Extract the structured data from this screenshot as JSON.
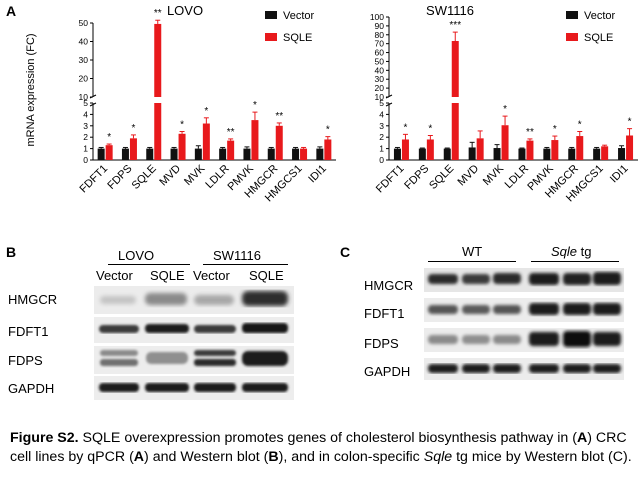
{
  "panelA": {
    "letter": "A",
    "ylabel": "mRNA expression (FC)",
    "categories": [
      "FDFT1",
      "FDPS",
      "SQLE",
      "MVD",
      "MVK",
      "LDLR",
      "PMVK",
      "HMGCR",
      "HMGCS1",
      "IDI1"
    ],
    "legend": [
      "Vector",
      "SQLE"
    ],
    "colors": {
      "vector": "#111111",
      "sqle": "#e8191c"
    }
  },
  "chart_data": [
    {
      "type": "bar",
      "title": "LOVO",
      "ylabel": "mRNA expression (FC)",
      "categories": [
        "FDFT1",
        "FDPS",
        "SQLE",
        "MVD",
        "MVK",
        "LDLR",
        "PMVK",
        "HMGCR",
        "HMGCS1",
        "IDI1"
      ],
      "series": [
        {
          "name": "Vector",
          "values": [
            1,
            1,
            1,
            1,
            1,
            1,
            1,
            1,
            1,
            1
          ],
          "errors": [
            0.1,
            0.1,
            0.1,
            0.1,
            0.25,
            0.1,
            0.15,
            0.1,
            0.1,
            0.15
          ]
        },
        {
          "name": "SQLE",
          "values": [
            1.3,
            1.9,
            49.5,
            2.3,
            3.2,
            1.7,
            3.5,
            3.0,
            1.0,
            1.8
          ],
          "errors": [
            0.1,
            0.3,
            2.0,
            0.2,
            0.5,
            0.15,
            0.7,
            0.25,
            0.1,
            0.25
          ]
        }
      ],
      "significance": [
        "*",
        "*",
        "**",
        "*",
        "*",
        "**",
        "*",
        "**",
        "",
        "*"
      ],
      "yticks": [
        0,
        1,
        2,
        3,
        4,
        5,
        10,
        20,
        30,
        40,
        50
      ],
      "broken_axis": {
        "lower": [
          0,
          5
        ],
        "upper": [
          10,
          50
        ]
      }
    },
    {
      "type": "bar",
      "title": "SW1116",
      "ylabel": "",
      "categories": [
        "FDFT1",
        "FDPS",
        "SQLE",
        "MVD",
        "MVK",
        "LDLR",
        "PMVK",
        "HMGCR",
        "HMGCS1",
        "IDI1"
      ],
      "series": [
        {
          "name": "Vector",
          "values": [
            1,
            1,
            1,
            1.1,
            1.05,
            1,
            1,
            1,
            1,
            1.05
          ],
          "errors": [
            0.1,
            0.05,
            0.05,
            0.45,
            0.3,
            0.05,
            0.1,
            0.1,
            0.1,
            0.2
          ]
        },
        {
          "name": "SQLE",
          "values": [
            1.8,
            1.8,
            73,
            1.9,
            3.05,
            1.7,
            1.75,
            2.1,
            1.2,
            2.15
          ],
          "errors": [
            0.45,
            0.35,
            10,
            0.65,
            0.8,
            0.15,
            0.35,
            0.4,
            0.1,
            0.6
          ]
        }
      ],
      "significance": [
        "*",
        "*",
        "***",
        "",
        "*",
        "**",
        "*",
        "*",
        "",
        "*"
      ],
      "yticks": [
        0,
        1,
        2,
        3,
        4,
        5,
        10,
        20,
        30,
        40,
        50,
        60,
        70,
        80,
        90,
        100
      ],
      "broken_axis": {
        "lower": [
          0,
          5
        ],
        "upper": [
          10,
          100
        ]
      }
    }
  ],
  "panelB": {
    "letter": "B",
    "groups": [
      "LOVO",
      "SW1116"
    ],
    "lanes": [
      "Vector",
      "SQLE",
      "Vector",
      "SQLE"
    ],
    "rows": [
      "HMGCR",
      "FDFT1",
      "FDPS",
      "GAPDH"
    ]
  },
  "panelC": {
    "letter": "C",
    "groups": [
      "WT",
      "Sqle tg"
    ],
    "group_plain": "WT",
    "group_italic": "Sqle",
    "group_suffix": " tg",
    "rows": [
      "HMGCR",
      "FDFT1",
      "FDPS",
      "GAPDH"
    ]
  },
  "caption": {
    "label": "Figure S2.",
    "t1": " SQLE overexpression promotes genes of cholesterol biosynthesis pathway in (",
    "a1": "A",
    "t2": ") CRC cell lines by qPCR (",
    "a2": "A",
    "t3": ") and Western blot (",
    "b1": "B",
    "t4": "), and in colon-specific ",
    "gene": "Sqle",
    "t5": " tg mice by Western blot (C)."
  }
}
